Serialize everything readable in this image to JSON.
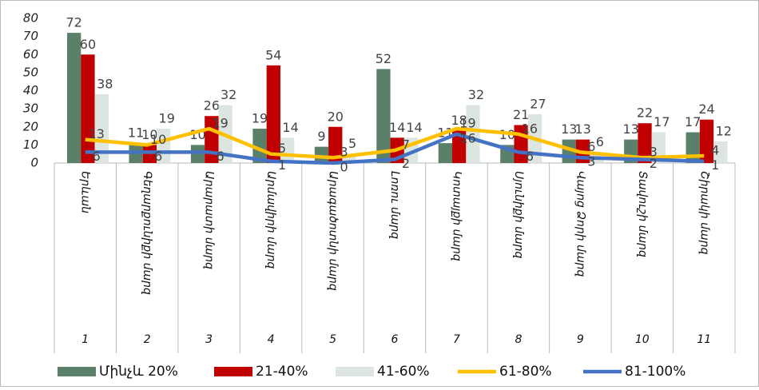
{
  "chart_data": {
    "type": "bar-line",
    "categories": [
      "Երևան",
      "Գեղարքունիքի մարզ",
      "Արարատի մարզ",
      "Արմավիրի մարզ",
      "Արագածոտնի մարզ",
      "Լոռու մարզ",
      "Կոտայքի մարզ",
      "Սյունիքի մարզ",
      "Վայոց Ձորի մարզ",
      "Տավուշի մարզ",
      "Շիրակի մարզ"
    ],
    "category_numbers": [
      1,
      2,
      3,
      4,
      5,
      6,
      7,
      8,
      9,
      10,
      11
    ],
    "series": [
      {
        "name": "Մինչև 20%",
        "type": "bar",
        "color": "#5b8069",
        "values": [
          72,
          11,
          10,
          19,
          9,
          52,
          11,
          10,
          13,
          13,
          17
        ]
      },
      {
        "name": "21-40%",
        "type": "bar",
        "color": "#c00000",
        "values": [
          60,
          10,
          26,
          54,
          20,
          14,
          18,
          21,
          13,
          22,
          24
        ]
      },
      {
        "name": "41-60%",
        "type": "bar",
        "color": "#dce5df",
        "values": [
          38,
          19,
          32,
          14,
          5,
          14,
          32,
          27,
          6,
          17,
          12
        ]
      },
      {
        "name": "61-80%",
        "type": "line",
        "color": "#ffc000",
        "values": [
          13,
          10,
          19,
          5,
          3,
          7,
          19,
          16,
          6,
          3,
          4
        ]
      },
      {
        "name": "81-100%",
        "type": "line",
        "color": "#4472c4",
        "values": [
          6,
          6,
          6,
          1,
          0,
          2,
          16,
          6,
          3,
          2,
          1
        ]
      }
    ],
    "ylim": [
      0,
      80
    ],
    "yticks": [
      0,
      10,
      20,
      30,
      40,
      50,
      60,
      70,
      80
    ],
    "grid": false,
    "legend": "bottom"
  }
}
